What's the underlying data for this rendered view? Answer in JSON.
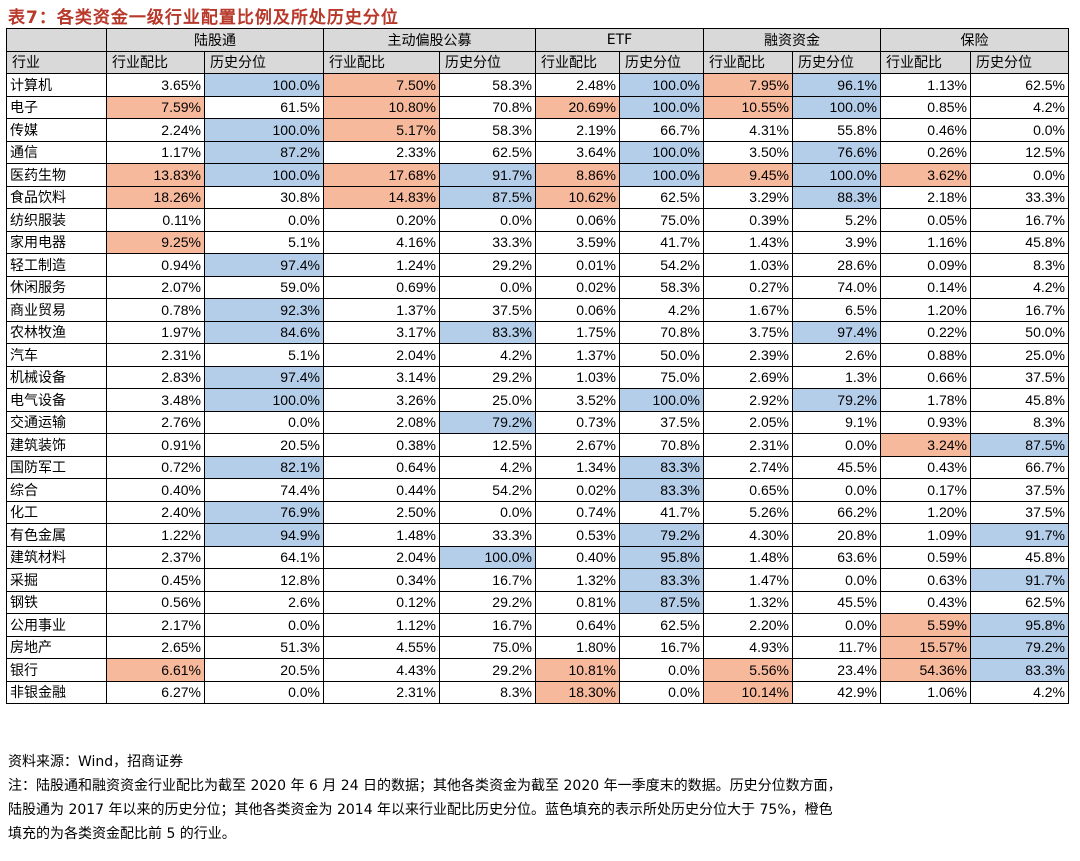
{
  "title": "表7：各类资金一级行业配置比例及所处历史分位",
  "table": {
    "corner": "",
    "industry_header": "行业",
    "groups": [
      "陆股通",
      "主动偏股公募",
      "ETF",
      "融资资金",
      "保险"
    ],
    "sub_headers": [
      "行业配比",
      "历史分位"
    ],
    "legend_colors": {
      "top5_fill": "#f7b99c",
      "high_percentile_fill": "#b4cde8"
    },
    "rows": [
      {
        "name": "计算机",
        "v": [
          "3.65%",
          "100.0%",
          "7.50%",
          "58.3%",
          "2.48%",
          "100.0%",
          "7.95%",
          "96.1%",
          "1.13%",
          "62.5%"
        ],
        "h": [
          "",
          "b",
          "o",
          "",
          "",
          "b",
          "o",
          "b",
          "",
          ""
        ]
      },
      {
        "name": "电子",
        "v": [
          "7.59%",
          "61.5%",
          "10.80%",
          "70.8%",
          "20.69%",
          "100.0%",
          "10.55%",
          "100.0%",
          "0.85%",
          "4.2%"
        ],
        "h": [
          "o",
          "",
          "o",
          "",
          "o",
          "b",
          "o",
          "b",
          "",
          ""
        ]
      },
      {
        "name": "传媒",
        "v": [
          "2.24%",
          "100.0%",
          "5.17%",
          "58.3%",
          "2.19%",
          "66.7%",
          "4.31%",
          "55.8%",
          "0.46%",
          "0.0%"
        ],
        "h": [
          "",
          "b",
          "o",
          "",
          "",
          "",
          "",
          "",
          "",
          ""
        ]
      },
      {
        "name": "通信",
        "v": [
          "1.17%",
          "87.2%",
          "2.33%",
          "62.5%",
          "3.64%",
          "100.0%",
          "3.50%",
          "76.6%",
          "0.26%",
          "12.5%"
        ],
        "h": [
          "",
          "b",
          "",
          "",
          "",
          "b",
          "",
          "b",
          "",
          ""
        ]
      },
      {
        "name": "医药生物",
        "v": [
          "13.83%",
          "100.0%",
          "17.68%",
          "91.7%",
          "8.86%",
          "100.0%",
          "9.45%",
          "100.0%",
          "3.62%",
          "0.0%"
        ],
        "h": [
          "o",
          "b",
          "o",
          "b",
          "o",
          "b",
          "o",
          "b",
          "o",
          ""
        ]
      },
      {
        "name": "食品饮料",
        "v": [
          "18.26%",
          "30.8%",
          "14.83%",
          "87.5%",
          "10.62%",
          "62.5%",
          "3.29%",
          "88.3%",
          "2.18%",
          "33.3%"
        ],
        "h": [
          "o",
          "",
          "o",
          "b",
          "o",
          "",
          "",
          "b",
          "",
          ""
        ]
      },
      {
        "name": "纺织服装",
        "v": [
          "0.11%",
          "0.0%",
          "0.20%",
          "0.0%",
          "0.06%",
          "75.0%",
          "0.39%",
          "5.2%",
          "0.05%",
          "16.7%"
        ],
        "h": [
          "",
          "",
          "",
          "",
          "",
          "",
          "",
          "",
          "",
          ""
        ]
      },
      {
        "name": "家用电器",
        "v": [
          "9.25%",
          "5.1%",
          "4.16%",
          "33.3%",
          "3.59%",
          "41.7%",
          "1.43%",
          "3.9%",
          "1.16%",
          "45.8%"
        ],
        "h": [
          "o",
          "",
          "",
          "",
          "",
          "",
          "",
          "",
          "",
          ""
        ]
      },
      {
        "name": "轻工制造",
        "v": [
          "0.94%",
          "97.4%",
          "1.24%",
          "29.2%",
          "0.01%",
          "54.2%",
          "1.03%",
          "28.6%",
          "0.09%",
          "8.3%"
        ],
        "h": [
          "",
          "b",
          "",
          "",
          "",
          "",
          "",
          "",
          "",
          ""
        ]
      },
      {
        "name": "休闲服务",
        "v": [
          "2.07%",
          "59.0%",
          "0.69%",
          "0.0%",
          "0.02%",
          "58.3%",
          "0.27%",
          "74.0%",
          "0.14%",
          "4.2%"
        ],
        "h": [
          "",
          "",
          "",
          "",
          "",
          "",
          "",
          "",
          "",
          ""
        ]
      },
      {
        "name": "商业贸易",
        "v": [
          "0.78%",
          "92.3%",
          "1.37%",
          "37.5%",
          "0.06%",
          "4.2%",
          "1.67%",
          "6.5%",
          "1.20%",
          "16.7%"
        ],
        "h": [
          "",
          "b",
          "",
          "",
          "",
          "",
          "",
          "",
          "",
          ""
        ]
      },
      {
        "name": "农林牧渔",
        "v": [
          "1.97%",
          "84.6%",
          "3.17%",
          "83.3%",
          "1.75%",
          "70.8%",
          "3.75%",
          "97.4%",
          "0.22%",
          "50.0%"
        ],
        "h": [
          "",
          "b",
          "",
          "b",
          "",
          "",
          "",
          "b",
          "",
          ""
        ]
      },
      {
        "name": "汽车",
        "v": [
          "2.31%",
          "5.1%",
          "2.04%",
          "4.2%",
          "1.37%",
          "50.0%",
          "2.39%",
          "2.6%",
          "0.88%",
          "25.0%"
        ],
        "h": [
          "",
          "",
          "",
          "",
          "",
          "",
          "",
          "",
          "",
          ""
        ]
      },
      {
        "name": "机械设备",
        "v": [
          "2.83%",
          "97.4%",
          "3.14%",
          "29.2%",
          "1.03%",
          "75.0%",
          "2.69%",
          "1.3%",
          "0.66%",
          "37.5%"
        ],
        "h": [
          "",
          "b",
          "",
          "",
          "",
          "",
          "",
          "",
          "",
          ""
        ]
      },
      {
        "name": "电气设备",
        "v": [
          "3.48%",
          "100.0%",
          "3.26%",
          "25.0%",
          "3.52%",
          "100.0%",
          "2.92%",
          "79.2%",
          "1.78%",
          "45.8%"
        ],
        "h": [
          "",
          "b",
          "",
          "",
          "",
          "b",
          "",
          "b",
          "",
          ""
        ]
      },
      {
        "name": "交通运输",
        "v": [
          "2.76%",
          "0.0%",
          "2.08%",
          "79.2%",
          "0.73%",
          "37.5%",
          "2.05%",
          "9.1%",
          "0.93%",
          "8.3%"
        ],
        "h": [
          "",
          "",
          "",
          "b",
          "",
          "",
          "",
          "",
          "",
          ""
        ]
      },
      {
        "name": "建筑装饰",
        "v": [
          "0.91%",
          "20.5%",
          "0.38%",
          "12.5%",
          "2.67%",
          "70.8%",
          "2.31%",
          "0.0%",
          "3.24%",
          "87.5%"
        ],
        "h": [
          "",
          "",
          "",
          "",
          "",
          "",
          "",
          "",
          "o",
          "b"
        ]
      },
      {
        "name": "国防军工",
        "v": [
          "0.72%",
          "82.1%",
          "0.64%",
          "4.2%",
          "1.34%",
          "83.3%",
          "2.74%",
          "45.5%",
          "0.43%",
          "66.7%"
        ],
        "h": [
          "",
          "b",
          "",
          "",
          "",
          "b",
          "",
          "",
          "",
          ""
        ]
      },
      {
        "name": "综合",
        "v": [
          "0.40%",
          "74.4%",
          "0.44%",
          "54.2%",
          "0.02%",
          "83.3%",
          "0.65%",
          "0.0%",
          "0.17%",
          "37.5%"
        ],
        "h": [
          "",
          "",
          "",
          "",
          "",
          "b",
          "",
          "",
          "",
          ""
        ]
      },
      {
        "name": "化工",
        "v": [
          "2.40%",
          "76.9%",
          "2.50%",
          "0.0%",
          "0.74%",
          "41.7%",
          "5.26%",
          "66.2%",
          "1.20%",
          "37.5%"
        ],
        "h": [
          "",
          "b",
          "",
          "",
          "",
          "",
          "",
          "",
          "",
          ""
        ]
      },
      {
        "name": "有色金属",
        "v": [
          "1.22%",
          "94.9%",
          "1.48%",
          "33.3%",
          "0.53%",
          "79.2%",
          "4.30%",
          "20.8%",
          "1.09%",
          "91.7%"
        ],
        "h": [
          "",
          "b",
          "",
          "",
          "",
          "b",
          "",
          "",
          "",
          "b"
        ]
      },
      {
        "name": "建筑材料",
        "v": [
          "2.37%",
          "64.1%",
          "2.04%",
          "100.0%",
          "0.40%",
          "95.8%",
          "1.48%",
          "63.6%",
          "0.59%",
          "45.8%"
        ],
        "h": [
          "",
          "",
          "",
          "b",
          "",
          "b",
          "",
          "",
          "",
          ""
        ]
      },
      {
        "name": "采掘",
        "v": [
          "0.45%",
          "12.8%",
          "0.34%",
          "16.7%",
          "1.32%",
          "83.3%",
          "1.47%",
          "0.0%",
          "0.63%",
          "91.7%"
        ],
        "h": [
          "",
          "",
          "",
          "",
          "",
          "b",
          "",
          "",
          "",
          "b"
        ]
      },
      {
        "name": "钢铁",
        "v": [
          "0.56%",
          "2.6%",
          "0.12%",
          "29.2%",
          "0.81%",
          "87.5%",
          "1.32%",
          "45.5%",
          "0.43%",
          "62.5%"
        ],
        "h": [
          "",
          "",
          "",
          "",
          "",
          "b",
          "",
          "",
          "",
          ""
        ]
      },
      {
        "name": "公用事业",
        "v": [
          "2.17%",
          "0.0%",
          "1.12%",
          "16.7%",
          "0.64%",
          "62.5%",
          "2.20%",
          "0.0%",
          "5.59%",
          "95.8%"
        ],
        "h": [
          "",
          "",
          "",
          "",
          "",
          "",
          "",
          "",
          "o",
          "b"
        ]
      },
      {
        "name": "房地产",
        "v": [
          "2.65%",
          "51.3%",
          "4.55%",
          "75.0%",
          "1.80%",
          "16.7%",
          "4.93%",
          "11.7%",
          "15.57%",
          "79.2%"
        ],
        "h": [
          "",
          "",
          "",
          "",
          "",
          "",
          "",
          "",
          "o",
          "b"
        ]
      },
      {
        "name": "银行",
        "v": [
          "6.61%",
          "20.5%",
          "4.43%",
          "29.2%",
          "10.81%",
          "0.0%",
          "5.56%",
          "23.4%",
          "54.36%",
          "83.3%"
        ],
        "h": [
          "o",
          "",
          "",
          "",
          "o",
          "",
          "o",
          "",
          "o",
          "b"
        ]
      },
      {
        "name": "非银金融",
        "v": [
          "6.27%",
          "0.0%",
          "2.31%",
          "8.3%",
          "18.30%",
          "0.0%",
          "10.14%",
          "42.9%",
          "1.06%",
          "4.2%"
        ],
        "h": [
          "",
          "",
          "",
          "",
          "o",
          "",
          "o",
          "",
          "",
          ""
        ]
      }
    ]
  },
  "notes": {
    "source": "资料来源：Wind，招商证券",
    "note_line1": "注：陆股通和融资资金行业配比为截至 2020 年 6 月 24 日的数据；其他各类资金为截至 2020 年一季度末的数据。历史分位数方面，",
    "note_line2": "陆股通为 2017 年以来的历史分位；其他各类资金为 2014 年以来行业配比历史分位。蓝色填充的表示所处历史分位大于 75%，橙色",
    "note_line3": "填充的为各类资金配比前 5 的行业。"
  }
}
